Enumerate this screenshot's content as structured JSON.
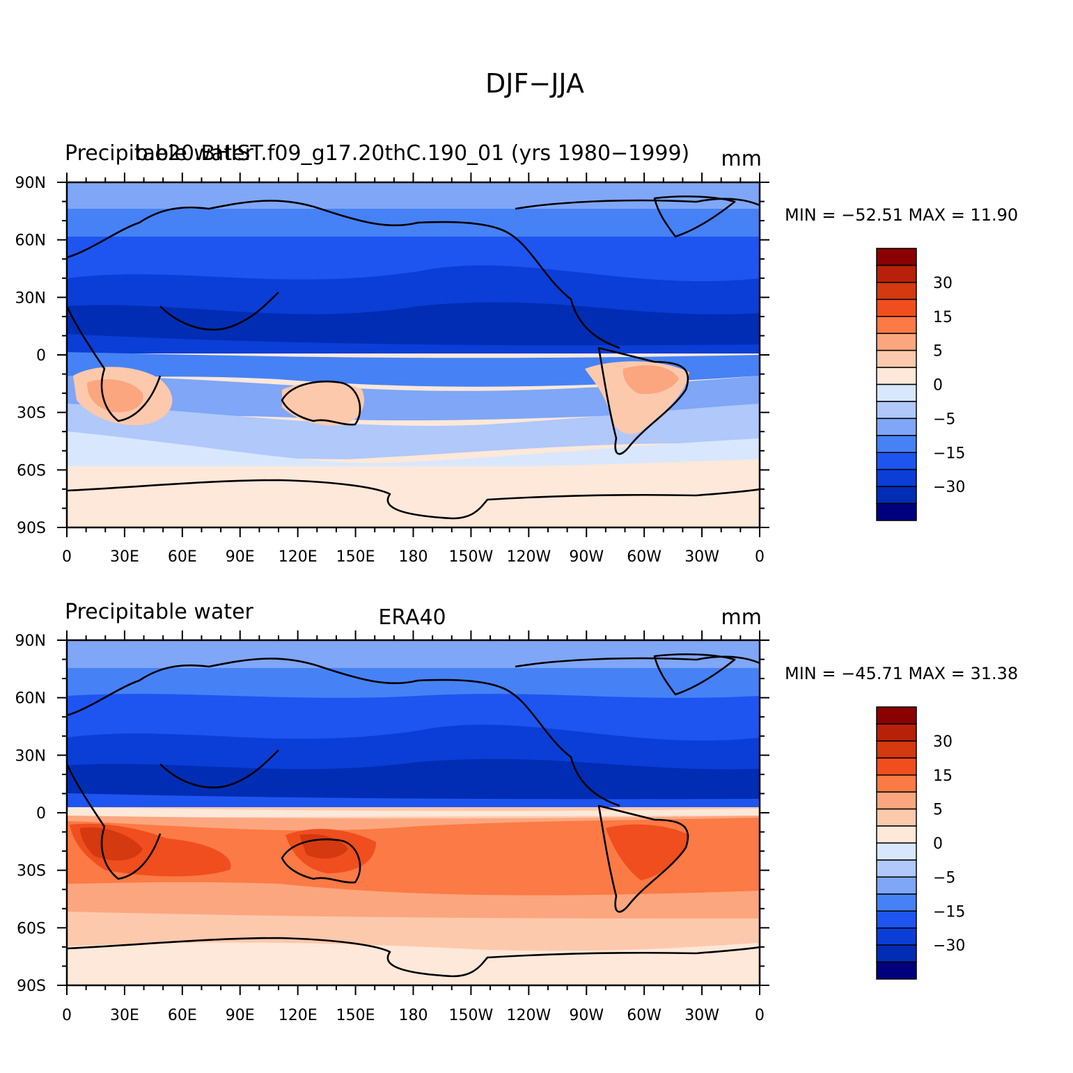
{
  "figure_title": "DJF−JJA",
  "palette": [
    "#00007f",
    "#002db4",
    "#0a3ed6",
    "#1e55f0",
    "#4682f5",
    "#7fa6f7",
    "#b0c8fa",
    "#d8e7fd",
    "#fde8d9",
    "#fdc9ad",
    "#fba67f",
    "#fb7a45",
    "#f04e1e",
    "#d43910",
    "#b8200a",
    "#8b0000"
  ],
  "colorbar_labels": [
    "-30",
    "-15",
    "-5",
    "0",
    "5",
    "15",
    "30"
  ],
  "lat_labels": [
    "90N",
    "60N",
    "30N",
    "0",
    "30S",
    "60S",
    "90S"
  ],
  "lon_labels": [
    "0",
    "30E",
    "60E",
    "90E",
    "120E",
    "150E",
    "180",
    "150W",
    "120W",
    "90W",
    "60W",
    "30W",
    "0"
  ],
  "panels": [
    {
      "left_title": "Precipitable water",
      "center_title": "b.e20.BHIST.f09_g17.20thC.190_01 (yrs 1980−1999)",
      "units": "mm",
      "stats": "MIN = −52.51  MAX =   11.90",
      "min": -52.51,
      "max": 11.9
    },
    {
      "left_title": "Precipitable water",
      "center_title": "ERA40",
      "units": "mm",
      "stats": "MIN = −45.71  MAX =   31.38",
      "min": -45.71,
      "max": 31.38
    }
  ]
}
